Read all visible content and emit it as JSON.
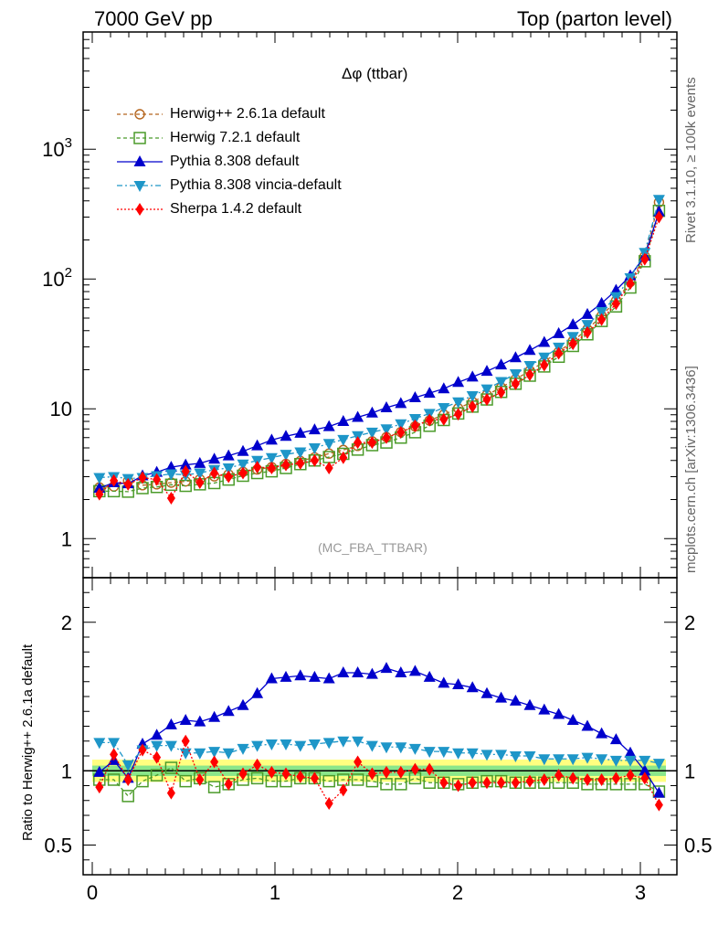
{
  "header": {
    "left": "7000 GeV pp",
    "right": "Top (parton level)"
  },
  "side_labels": {
    "rivet": "Rivet 3.1.10, ≥ 100k events",
    "mcplots": "mcplots.cern.ch [arXiv:1306.3436]"
  },
  "chart_data": [
    {
      "type": "line",
      "title": "Δφ (ttbar)",
      "watermark": "(MC_FBA_TTBAR)",
      "xlabel": "",
      "ylabel": "",
      "yscale": "log",
      "xlim": [
        -0.05,
        3.2
      ],
      "ylim": [
        0.5,
        8000
      ],
      "y_ticks": [
        1,
        10,
        100,
        1000
      ],
      "y_tick_labels": [
        "1",
        "10",
        "10^2",
        "10^3"
      ],
      "legend_position": "top-left",
      "x": [
        0.039,
        0.118,
        0.196,
        0.275,
        0.353,
        0.432,
        0.511,
        0.589,
        0.668,
        0.746,
        0.825,
        0.903,
        0.982,
        1.06,
        1.139,
        1.217,
        1.296,
        1.374,
        1.453,
        1.532,
        1.61,
        1.689,
        1.767,
        1.846,
        1.924,
        2.003,
        2.081,
        2.16,
        2.238,
        2.317,
        2.395,
        2.474,
        2.553,
        2.631,
        2.71,
        2.788,
        2.867,
        2.945,
        3.024,
        3.102
      ],
      "series": [
        {
          "name": "Herwig++ 2.6.1a default",
          "color": "#b5651d",
          "marker": "open-circle",
          "dash": "4,3",
          "values": [
            2.48,
            2.52,
            2.78,
            2.58,
            2.62,
            2.7,
            2.76,
            2.86,
            3.02,
            3.12,
            3.27,
            3.41,
            3.55,
            3.76,
            3.96,
            4.22,
            4.52,
            4.82,
            5.18,
            5.62,
            6.05,
            6.62,
            7.32,
            8.12,
            9.02,
            10.1,
            11.3,
            12.8,
            14.6,
            16.9,
            19.6,
            23.1,
            27.5,
            33.3,
            41.0,
            52.0,
            68.0,
            95.0,
            150.0,
            390.0
          ]
        },
        {
          "name": "Herwig 7.2.1 default",
          "color": "#4b9b2a",
          "marker": "open-square",
          "dash": "4,3",
          "values": [
            2.32,
            2.32,
            2.3,
            2.45,
            2.5,
            2.6,
            2.55,
            2.62,
            2.68,
            2.85,
            3.05,
            3.2,
            3.3,
            3.5,
            3.75,
            4.0,
            4.25,
            4.5,
            4.85,
            5.25,
            5.5,
            6.0,
            6.6,
            7.4,
            8.2,
            9.2,
            10.4,
            11.8,
            13.5,
            15.6,
            18.0,
            21.2,
            25.2,
            30.5,
            37.5,
            47.5,
            61.5,
            86.0,
            137.0,
            335.0
          ]
        },
        {
          "name": "Pythia 8.308 default",
          "color": "#0000cc",
          "marker": "filled-triangle-up",
          "dash": "",
          "values": [
            2.45,
            2.7,
            2.65,
            3.05,
            3.25,
            3.55,
            3.7,
            3.8,
            4.1,
            4.35,
            4.7,
            5.2,
            5.75,
            6.15,
            6.5,
            6.9,
            7.3,
            8.0,
            8.6,
            9.3,
            10.2,
            11.0,
            12.2,
            13.2,
            14.3,
            16.0,
            17.6,
            19.5,
            21.8,
            24.8,
            28.2,
            32.5,
            38.0,
            44.5,
            53.5,
            65.0,
            82.0,
            106.0,
            150.0,
            330.0
          ]
        },
        {
          "name": "Pythia 8.308 vincia-default",
          "color": "#1e96c8",
          "marker": "filled-triangle-down",
          "dash": "6,3,2,3",
          "values": [
            2.95,
            3.0,
            2.9,
            2.95,
            3.05,
            3.15,
            3.1,
            3.2,
            3.4,
            3.5,
            3.75,
            4.0,
            4.2,
            4.45,
            4.65,
            5.0,
            5.4,
            5.8,
            6.2,
            6.6,
            7.0,
            7.65,
            8.4,
            9.2,
            10.2,
            11.3,
            12.6,
            14.2,
            16.2,
            18.6,
            21.5,
            25.0,
            29.8,
            36.0,
            44.5,
            56.0,
            73.0,
            102.0,
            160.0,
            410.0
          ]
        },
        {
          "name": "Sherpa 1.4.2 default",
          "color": "#ff0000",
          "marker": "filled-diamond",
          "dash": "2,2",
          "values": [
            2.2,
            2.8,
            2.62,
            2.95,
            2.85,
            2.05,
            3.3,
            2.7,
            3.2,
            3.0,
            3.2,
            3.55,
            3.5,
            3.7,
            3.8,
            4.0,
            3.5,
            4.2,
            5.5,
            5.5,
            6.0,
            6.6,
            7.4,
            8.2,
            8.3,
            9.1,
            10.4,
            11.8,
            13.4,
            15.6,
            18.3,
            21.7,
            26.8,
            31.7,
            38.7,
            48.7,
            64.5,
            92.3,
            142.0,
            300.0
          ]
        }
      ]
    },
    {
      "type": "line",
      "title": "",
      "xlabel": "",
      "ylabel": "Ratio to Herwig++ 2.6.1a default",
      "xlim": [
        -0.05,
        3.2
      ],
      "ylim": [
        0.3,
        2.3
      ],
      "x_ticks": [
        0,
        1,
        2,
        3
      ],
      "y_ticks": [
        0.5,
        1,
        2
      ],
      "reference_bands": {
        "inner": 0.035,
        "outer": 0.075,
        "inner_color": "#8ae68a",
        "outer_color": "#ffff80"
      },
      "x": [
        0.039,
        0.118,
        0.196,
        0.275,
        0.353,
        0.432,
        0.511,
        0.589,
        0.668,
        0.746,
        0.825,
        0.903,
        0.982,
        1.06,
        1.139,
        1.217,
        1.296,
        1.374,
        1.453,
        1.532,
        1.61,
        1.689,
        1.767,
        1.846,
        1.924,
        2.003,
        2.081,
        2.16,
        2.238,
        2.317,
        2.395,
        2.474,
        2.553,
        2.631,
        2.71,
        2.788,
        2.867,
        2.945,
        3.024,
        3.102
      ],
      "series": [
        {
          "name": "Herwig 7.2.1 default",
          "color": "#4b9b2a",
          "marker": "open-square",
          "dash": "4,3",
          "values": [
            0.94,
            0.94,
            0.83,
            0.93,
            0.97,
            1.02,
            0.93,
            0.95,
            0.89,
            0.91,
            0.94,
            0.95,
            0.93,
            0.93,
            0.95,
            0.95,
            0.93,
            0.94,
            0.94,
            0.93,
            0.91,
            0.91,
            0.95,
            0.92,
            0.92,
            0.91,
            0.92,
            0.93,
            0.93,
            0.92,
            0.92,
            0.92,
            0.92,
            0.92,
            0.91,
            0.91,
            0.91,
            0.91,
            0.91,
            0.86
          ]
        },
        {
          "name": "Pythia 8.308 default",
          "color": "#0000cc",
          "marker": "filled-triangle-up",
          "dash": "",
          "values": [
            0.99,
            1.07,
            0.95,
            1.18,
            1.24,
            1.31,
            1.34,
            1.33,
            1.36,
            1.4,
            1.44,
            1.52,
            1.62,
            1.63,
            1.64,
            1.63,
            1.62,
            1.66,
            1.66,
            1.65,
            1.69,
            1.66,
            1.67,
            1.63,
            1.59,
            1.58,
            1.56,
            1.52,
            1.49,
            1.47,
            1.44,
            1.41,
            1.38,
            1.34,
            1.3,
            1.25,
            1.21,
            1.12,
            1.0,
            0.85
          ]
        },
        {
          "name": "Pythia 8.308 vincia-default",
          "color": "#1e96c8",
          "marker": "filled-triangle-down",
          "dash": "6,3,2,3",
          "values": [
            1.19,
            1.19,
            1.04,
            1.14,
            1.17,
            1.17,
            1.12,
            1.12,
            1.13,
            1.12,
            1.15,
            1.17,
            1.18,
            1.18,
            1.17,
            1.18,
            1.19,
            1.2,
            1.2,
            1.17,
            1.16,
            1.16,
            1.15,
            1.13,
            1.13,
            1.12,
            1.12,
            1.11,
            1.11,
            1.1,
            1.1,
            1.08,
            1.08,
            1.08,
            1.09,
            1.08,
            1.07,
            1.07,
            1.07,
            1.05
          ]
        },
        {
          "name": "Sherpa 1.4.2 default",
          "color": "#ff0000",
          "marker": "filled-diamond",
          "dash": "2,2",
          "values": [
            0.89,
            1.11,
            0.94,
            1.14,
            1.09,
            0.85,
            1.2,
            0.94,
            1.06,
            0.91,
            0.98,
            1.04,
            0.99,
            0.98,
            0.96,
            0.95,
            0.78,
            0.87,
            1.06,
            0.98,
            0.99,
            0.99,
            1.01,
            1.01,
            0.92,
            0.9,
            0.92,
            0.92,
            0.92,
            0.92,
            0.93,
            0.94,
            0.97,
            0.95,
            0.94,
            0.94,
            0.95,
            0.97,
            0.95,
            0.77
          ]
        }
      ]
    }
  ]
}
